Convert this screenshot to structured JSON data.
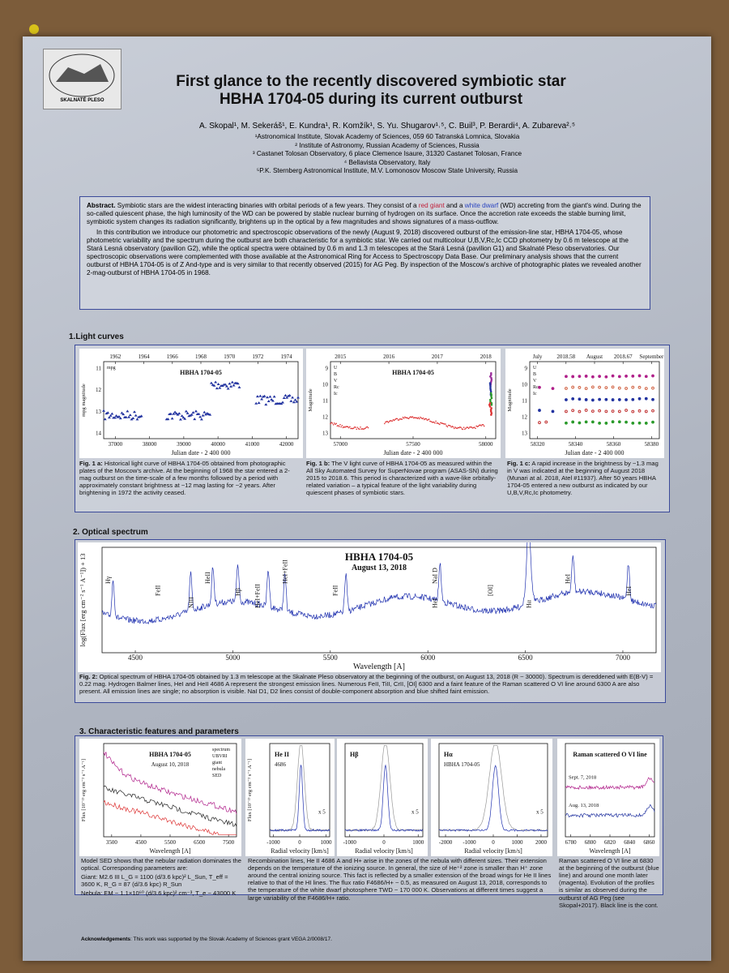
{
  "header": {
    "logo_text": "SKALNATÉ PLESO",
    "title_line1": "First glance to the recently discovered  symbiotic star",
    "title_line2": "HBHA 1704-05 during its current outburst",
    "authors": "A. Skopal¹, M. Sekeráš¹, E. Kundra¹, R. Komžík¹, S. Yu. Shugarov¹˒⁵, C. Buil³, P. Berardi⁴, A. Zubareva²˒⁵",
    "affiliations": [
      "¹Astronomical Institute, Slovak Academy of Sciences, 059 60 Tatranská Lomnica, Slovakia",
      "² Institute of Astronomy, Russian Academy of Sciences, Russia",
      "³ Castanet Tolosan Observatory, 6 place Clemence Isaure, 31320 Castanet Tolosan, France",
      "⁴ Bellavista Observatory, Italy",
      "⁵P.K. Sternberg Astronomical Institute, M.V. Lomonosov Moscow State University, Russia"
    ]
  },
  "abstract": {
    "label": "Abstract.",
    "p1_a": " Symbiotic stars are the widest interacting binaries with orbital periods of a few years. They consist of a ",
    "red_giant": "red giant",
    "p1_b": " and a ",
    "white_dwarf": "white dwarf",
    "p1_c": " (WD) accreting from the giant's wind. During the so-called  quiescent phase, the high luminosity of the WD can be powered by stable nuclear burning of hydrogen on its surface. Once the accretion rate exceeds the stable burning limit, symbiotic system changes its radiation significantly, brightens up in the optical by a few magnitudes and shows signatures of a mass-outflow.",
    "p2": "In this contribution we introduce our photometric and spectroscopic observations of the newly (August 9, 2018) discovered outburst of the emission-line star, HBHA 1704-05, whose photometric variability and the spectrum during the outburst are both characteristic for a symbiotic star. We carried out multicolour U,B,V,Rc,Ic CCD photometry by 0.6 m telescope at the Stará Lesná observatory (pavilion G2), while the optical spectra were obtained by 0.6 m and 1.3 m telescopes at the Stará Lesná (pavilion G1) and Skalnaté Pleso observatories. Our spectroscopic observations were complemented with those available at the Astronomical Ring for Access to Spectroscopy Data Base. Our preliminary analysis shows that the current outburst of HBHA 1704-05 is of Z And-type and is very similar to that recently observed (2015) for AG Peg. By inspection of the Moscow's archive of photographic plates we revealed another 2-mag-outburst of HBHA 1704-05 in 1968."
  },
  "light_curves": {
    "heading": "1.Light curves",
    "figures": [
      {
        "title": "HBHA 1704-05",
        "legend": [
          "mpg"
        ],
        "top_ticks": [
          "1962",
          "1964",
          "1966",
          "1968",
          "1970",
          "1972",
          "1974"
        ],
        "xticks": [
          "37000",
          "38000",
          "39000",
          "40000",
          "41000",
          "42000"
        ],
        "yticks": [
          "11",
          "12",
          "13",
          "14"
        ],
        "xlabel": "Julian date - 2 400 000",
        "ylabel": "mpg magnitude",
        "caption_label": "Fig. 1 a:",
        "caption": " Historical light curve of HBHA 1704-05 obtained from photographic plates of the Moscow's archive. At the beginning of 1968 the star entered a 2-mag outburst on the time-scale of  a few months followed by a period with approximately constant brightness at ~12 mag lasting for ~2 years. After brightening in 1972 the activity ceased."
      },
      {
        "title": "HBHA 1704-05",
        "legend": [
          "U",
          "B",
          "V",
          "Rc",
          "Ic"
        ],
        "top_ticks": [
          "2015",
          "2016",
          "2017",
          "2018"
        ],
        "xticks": [
          "57000",
          "57500",
          "58000"
        ],
        "yticks": [
          "9",
          "10",
          "11",
          "12",
          "13"
        ],
        "xlabel": "Julian date - 2 400 000",
        "ylabel": "Magnitude",
        "caption_label": "Fig. 1 b:",
        "caption": " The V light curve of HBHA 1704-05 as measured within the All Sky Automated Survey for SuperNovae program (ASAS-SN) during 2015 to 2018.6. This period is characterized with a wave-like orbitally-related variation – a typical feature of the light variability during quiescent phases of symbiotic stars."
      },
      {
        "legend": [
          "U",
          "B",
          "V",
          "Rc",
          "Ic"
        ],
        "top_ticks": [
          "July",
          "2018.58",
          "August",
          "2018.67",
          "September"
        ],
        "xticks": [
          "58320",
          "58340",
          "58360",
          "58380"
        ],
        "yticks": [
          "9",
          "10",
          "11",
          "12",
          "13"
        ],
        "xlabel": "Julian date - 2 400 000",
        "ylabel": "Magnitude",
        "caption_label": "Fig. 1 c:",
        "caption": " A rapid increase in the brightness by ~1.3 mag in V was indicated at the beginning of August 2018 (Munari at al. 2018, Atel #11937). After 50 years HBHA 1704-05 entered a new outburst as indicated by our U,B,V,Rc,Ic photometry."
      }
    ]
  },
  "spectrum": {
    "heading": "2. Optical spectrum",
    "title": "HBHA 1704-05",
    "subtitle": "August 13, 2018",
    "labels": [
      "Hγ",
      "FeII",
      "NIII",
      "HeII",
      "Hβ",
      "HeI+FeII",
      "HeI+FeII",
      "FeII",
      "HeI",
      "NaI D",
      "[OI]",
      "Hα",
      "HeI",
      "HeI"
    ],
    "xticks": [
      "4500",
      "5000",
      "5500",
      "6000",
      "6500",
      "7000"
    ],
    "xlabel": "Wavelength [A]",
    "ylabel": "log(Flux [erg cm⁻² s⁻¹ A⁻¹]) + 13",
    "caption_label": "Fig. 2:",
    "caption": " Optical spectrum of HBHA 1704-05 obtained by 1.3 m telescope at the Skalnate Pleso observatory at the beginning of the outburst, on August 13, 2018 (R ~ 30000). Spectrum is dereddened with E(B-V) = 0.22 mag. Hydrogen Balmer lines, HeI and HeII 4686 A represent the strongest emission lines. Numerous FeII, TiII, CrII, [OI] 6300 and a faint feature of the Raman scattered O VI line around 6300 A are also present. All emission lines are single; no absorption is visible. NaI D1, D2 lines consist of double-component absorption and blue shifted faint emission."
  },
  "characteristics": {
    "heading": "3. Characteristic features and parameters",
    "panels": [
      {
        "title": "HBHA 1704-05",
        "subtitle": "August 10, 2018",
        "legend": [
          "spectrum",
          "UBVRI",
          "giant",
          "nebula",
          "SED"
        ],
        "xticks": [
          "3500",
          "4500",
          "5500",
          "6500",
          "7500"
        ],
        "xlabel": "Wavelength [A]",
        "ylabel": "Flux [10⁻¹³ erg cm⁻² s⁻¹ A⁻¹]"
      },
      {
        "title": "He II",
        "subtitle": "4686",
        "scale": "x 5",
        "xticks": [
          "-1000",
          "0",
          "1000"
        ],
        "xlabel": "Radial velocity [km/s]",
        "ylabel": "Flux [10⁻¹³ erg cm⁻² s⁻¹ A⁻¹]"
      },
      {
        "title": "Hβ",
        "scale": "x 5",
        "xticks": [
          "-1000",
          "0",
          "1000"
        ],
        "xlabel": "Radial velocity [km/s]"
      },
      {
        "title": "Hα",
        "subtitle": "HBHA 1704-05",
        "scale": "x 5",
        "xticks": [
          "-2000",
          "-1000",
          "0",
          "1000",
          "2000"
        ],
        "xlabel": "Radial velocity [km/s]"
      },
      {
        "title": "Raman scattered O VI line",
        "legend": [
          "Sept. 7, 2018",
          "Aug. 13, 2018"
        ],
        "xticks": [
          "6780",
          "6800",
          "6820",
          "6840",
          "6860"
        ],
        "xlabel": "Wavelength [A]"
      }
    ],
    "text_left": "Model SED shows that the nebular radiation dominates the optical. Corresponding parameters are:",
    "giant": "Giant: M2.6 III   L_G = 1100 (d/3.6 kpc)² L_Sun,  T_eff = 3600 K,  R_G = 87 (d/3.6 kpc) R_Sun",
    "nebula": "Nebula:  EM ~ 1.1×10⁶⁰ (d/3.6 kpc)² cm⁻³,  T_e ~ 43000 K",
    "text_middle": "Recombination lines, He II 4686 A and H+ arise in the zones of the nebula with different sizes. Their extension depends on the temperature of the ionizing source. In general, the size of He⁺² zone is smaller than H⁺ zone around the central ionizing source. This fact is reflected by a smaller extension of the broad wings for He II lines relative to that of the HI lines. The flux ratio F4686/H+ ~ 0.5, as measured on August 13, 2018, corresponds to the temperature of the white dwarf photosphere TWD ~ 170 000 K. Observations at different times suggest a large variability of the F4686/H+ ratio.",
    "text_right": "Raman scattered O VI line at 6830 at the beginning of the outburst (blue line) and around one month later (magenta). Evolution of the profiles is similar as observed during the outburst of AG Peg (see Skopal+2017). Black line is the cont."
  },
  "acknowledgements": {
    "label": "Acknowledgements",
    "text": ": This work was supported by the Slovak Academy of Sciences grant  VEGA 2/0008/17."
  }
}
